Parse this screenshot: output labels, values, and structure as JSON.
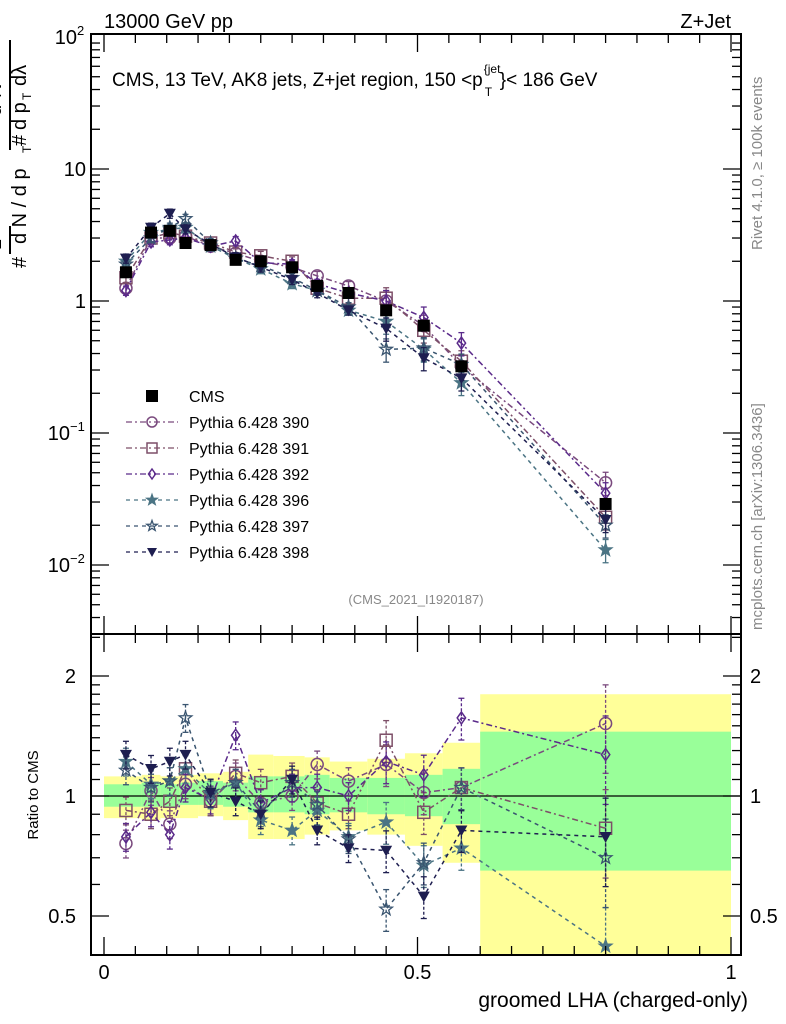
{
  "header": {
    "left": "13000 GeV pp",
    "right": "Z+Jet"
  },
  "side_labels": {
    "rivet": "Rivet 4.1.0, ≥ 100k events",
    "mcplots": "mcplots.cern.ch [arXiv:1306.3436]"
  },
  "chart_data": [
    {
      "type": "line",
      "panel": "main",
      "title": "CMS, 13 TeV, AK8 jets, Z+jet region, 150 <p_T^{jet}< 186 GeV",
      "title_parts": {
        "pre": "CMS, 13 TeV, AK8 jets, Z+jet region, 150 <p",
        "sup": "{jet",
        "sub": "T",
        "post": "}< 186 GeV"
      },
      "watermark": "(CMS_2021_I1920187)",
      "ylabel": "1/N dN/dp_T d²N/dp_T dλ",
      "yscale": "log",
      "ylim": [
        0.003,
        100
      ],
      "xlim": [
        -0.02,
        1.02
      ],
      "yticks": [
        {
          "value": 100,
          "label": "10",
          "exp": "2"
        },
        {
          "value": 10,
          "label": "10",
          "exp": ""
        },
        {
          "value": 1,
          "label": "1",
          "exp": ""
        },
        {
          "value": 0.1,
          "label": "10",
          "exp": "−1"
        },
        {
          "value": 0.01,
          "label": "10",
          "exp": "−2"
        }
      ],
      "x": [
        0.035,
        0.075,
        0.105,
        0.13,
        0.17,
        0.21,
        0.25,
        0.3,
        0.34,
        0.39,
        0.45,
        0.51,
        0.57,
        0.8
      ],
      "legend_position": "middle-left",
      "series": [
        {
          "name": "CMS",
          "marker": "square-filled",
          "color": "#000000",
          "dash": "none",
          "values": [
            1.65,
            3.3,
            3.4,
            2.75,
            2.65,
            2.05,
            2.0,
            1.8,
            1.3,
            1.15,
            0.85,
            0.65,
            0.32,
            0.029
          ]
        },
        {
          "name": "Pythia 6.428 390",
          "marker": "circle-open",
          "color": "#7a4a7e",
          "dash": "6,3,2,3",
          "values": [
            1.25,
            3.0,
            3.0,
            3.1,
            2.6,
            2.3,
            2.0,
            1.8,
            1.55,
            1.3,
            1.0,
            0.65,
            0.32,
            0.042
          ]
        },
        {
          "name": "Pythia 6.428 391",
          "marker": "square-open",
          "color": "#7d4f68",
          "dash": "6,3,2,3",
          "values": [
            1.5,
            3.0,
            3.3,
            3.1,
            2.75,
            2.35,
            2.2,
            2.0,
            1.25,
            1.05,
            1.05,
            0.6,
            0.35,
            0.023
          ]
        },
        {
          "name": "Pythia 6.428 392",
          "marker": "diamond-open",
          "color": "#5a2a8a",
          "dash": "6,3,2,3",
          "values": [
            1.2,
            2.8,
            2.9,
            3.0,
            2.6,
            2.85,
            1.95,
            1.9,
            1.35,
            1.15,
            1.0,
            0.75,
            0.48,
            0.035
          ]
        },
        {
          "name": "Pythia 6.428 396",
          "marker": "star-filled",
          "color": "#4b7484",
          "dash": "4,4",
          "values": [
            2.0,
            3.3,
            3.5,
            3.6,
            2.6,
            2.1,
            1.75,
            1.35,
            1.2,
            0.85,
            0.7,
            0.43,
            0.24,
            0.013
          ]
        },
        {
          "name": "Pythia 6.428 397",
          "marker": "star-open",
          "color": "#3a5570",
          "dash": "4,4",
          "values": [
            1.9,
            3.0,
            3.6,
            4.2,
            2.75,
            2.1,
            1.85,
            1.5,
            1.2,
            0.9,
            0.43,
            0.44,
            0.33,
            0.02
          ]
        },
        {
          "name": "Pythia 6.428 398",
          "marker": "triangle-down-filled",
          "color": "#1e1e50",
          "dash": "4,4",
          "values": [
            2.1,
            3.6,
            4.6,
            3.5,
            2.7,
            2.15,
            1.8,
            1.45,
            1.15,
            0.85,
            0.62,
            0.37,
            0.26,
            0.022
          ]
        }
      ]
    },
    {
      "type": "line",
      "panel": "ratio",
      "ylabel": "Ratio to CMS",
      "xlabel": "groomed LHA (charged-only)",
      "yscale": "log",
      "ylim": [
        0.4,
        2.55
      ],
      "xlim": [
        -0.02,
        1.02
      ],
      "yticks": [
        {
          "value": 2,
          "label": "2"
        },
        {
          "value": 1,
          "label": "1"
        },
        {
          "value": 0.5,
          "label": "0.5"
        }
      ],
      "xticks": [
        {
          "value": 0,
          "label": "0"
        },
        {
          "value": 0.5,
          "label": "0.5"
        },
        {
          "value": 1,
          "label": "1"
        }
      ],
      "bands": {
        "edges": [
          0.0,
          0.06,
          0.09,
          0.12,
          0.15,
          0.19,
          0.23,
          0.27,
          0.32,
          0.36,
          0.42,
          0.48,
          0.54,
          0.6,
          1.0
        ],
        "inner_color": "#99ff99",
        "outer_color": "#ffff99",
        "inner": [
          [
            0.94,
            1.07
          ],
          [
            0.94,
            1.08
          ],
          [
            0.94,
            1.07
          ],
          [
            0.95,
            1.08
          ],
          [
            0.95,
            1.09
          ],
          [
            0.94,
            1.08
          ],
          [
            0.91,
            1.12
          ],
          [
            0.91,
            1.12
          ],
          [
            0.9,
            1.13
          ],
          [
            0.91,
            1.11
          ],
          [
            0.9,
            1.11
          ],
          [
            0.89,
            1.13
          ],
          [
            0.85,
            1.17
          ],
          [
            0.65,
            1.45
          ]
        ],
        "outer": [
          [
            0.88,
            1.12
          ],
          [
            0.87,
            1.13
          ],
          [
            0.88,
            1.12
          ],
          [
            0.88,
            1.13
          ],
          [
            0.89,
            1.14
          ],
          [
            0.87,
            1.15
          ],
          [
            0.78,
            1.27
          ],
          [
            0.78,
            1.26
          ],
          [
            0.8,
            1.25
          ],
          [
            0.82,
            1.22
          ],
          [
            0.8,
            1.24
          ],
          [
            0.75,
            1.28
          ],
          [
            0.68,
            1.36
          ],
          [
            0.4,
            1.8
          ]
        ]
      },
      "x": [
        0.035,
        0.075,
        0.105,
        0.13,
        0.17,
        0.21,
        0.25,
        0.3,
        0.34,
        0.39,
        0.45,
        0.51,
        0.57,
        0.8
      ],
      "series": [
        {
          "name": "Pythia 6.428 390",
          "values": [
            0.76,
            1.03,
            0.85,
            1.07,
            0.97,
            1.12,
            0.96,
            1.0,
            1.2,
            1.09,
            1.2,
            1.02,
            1.05,
            1.52
          ]
        },
        {
          "name": "Pythia 6.428 391",
          "values": [
            0.92,
            0.9,
            0.97,
            1.17,
            0.97,
            1.14,
            1.08,
            1.12,
            0.96,
            0.9,
            1.38,
            0.91,
            1.05,
            0.83
          ]
        },
        {
          "name": "Pythia 6.428 392",
          "values": [
            0.79,
            0.91,
            0.8,
            1.05,
            0.98,
            1.42,
            0.96,
            1.05,
            1.05,
            1.0,
            1.22,
            1.13,
            1.57,
            1.27
          ]
        },
        {
          "name": "Pythia 6.428 396",
          "values": [
            1.22,
            1.07,
            1.09,
            1.17,
            1.01,
            1.08,
            0.87,
            0.82,
            0.92,
            0.79,
            0.86,
            0.67,
            0.74,
            0.42
          ]
        },
        {
          "name": "Pythia 6.428 397",
          "values": [
            1.16,
            1.05,
            1.09,
            1.57,
            1.02,
            1.08,
            0.91,
            1.08,
            0.95,
            0.78,
            0.52,
            0.68,
            1.05,
            0.7
          ]
        },
        {
          "name": "Pythia 6.428 398",
          "values": [
            1.27,
            1.17,
            1.22,
            1.27,
            1.02,
            0.97,
            0.9,
            1.1,
            0.82,
            0.74,
            0.73,
            0.56,
            0.82,
            0.79
          ]
        }
      ]
    }
  ]
}
